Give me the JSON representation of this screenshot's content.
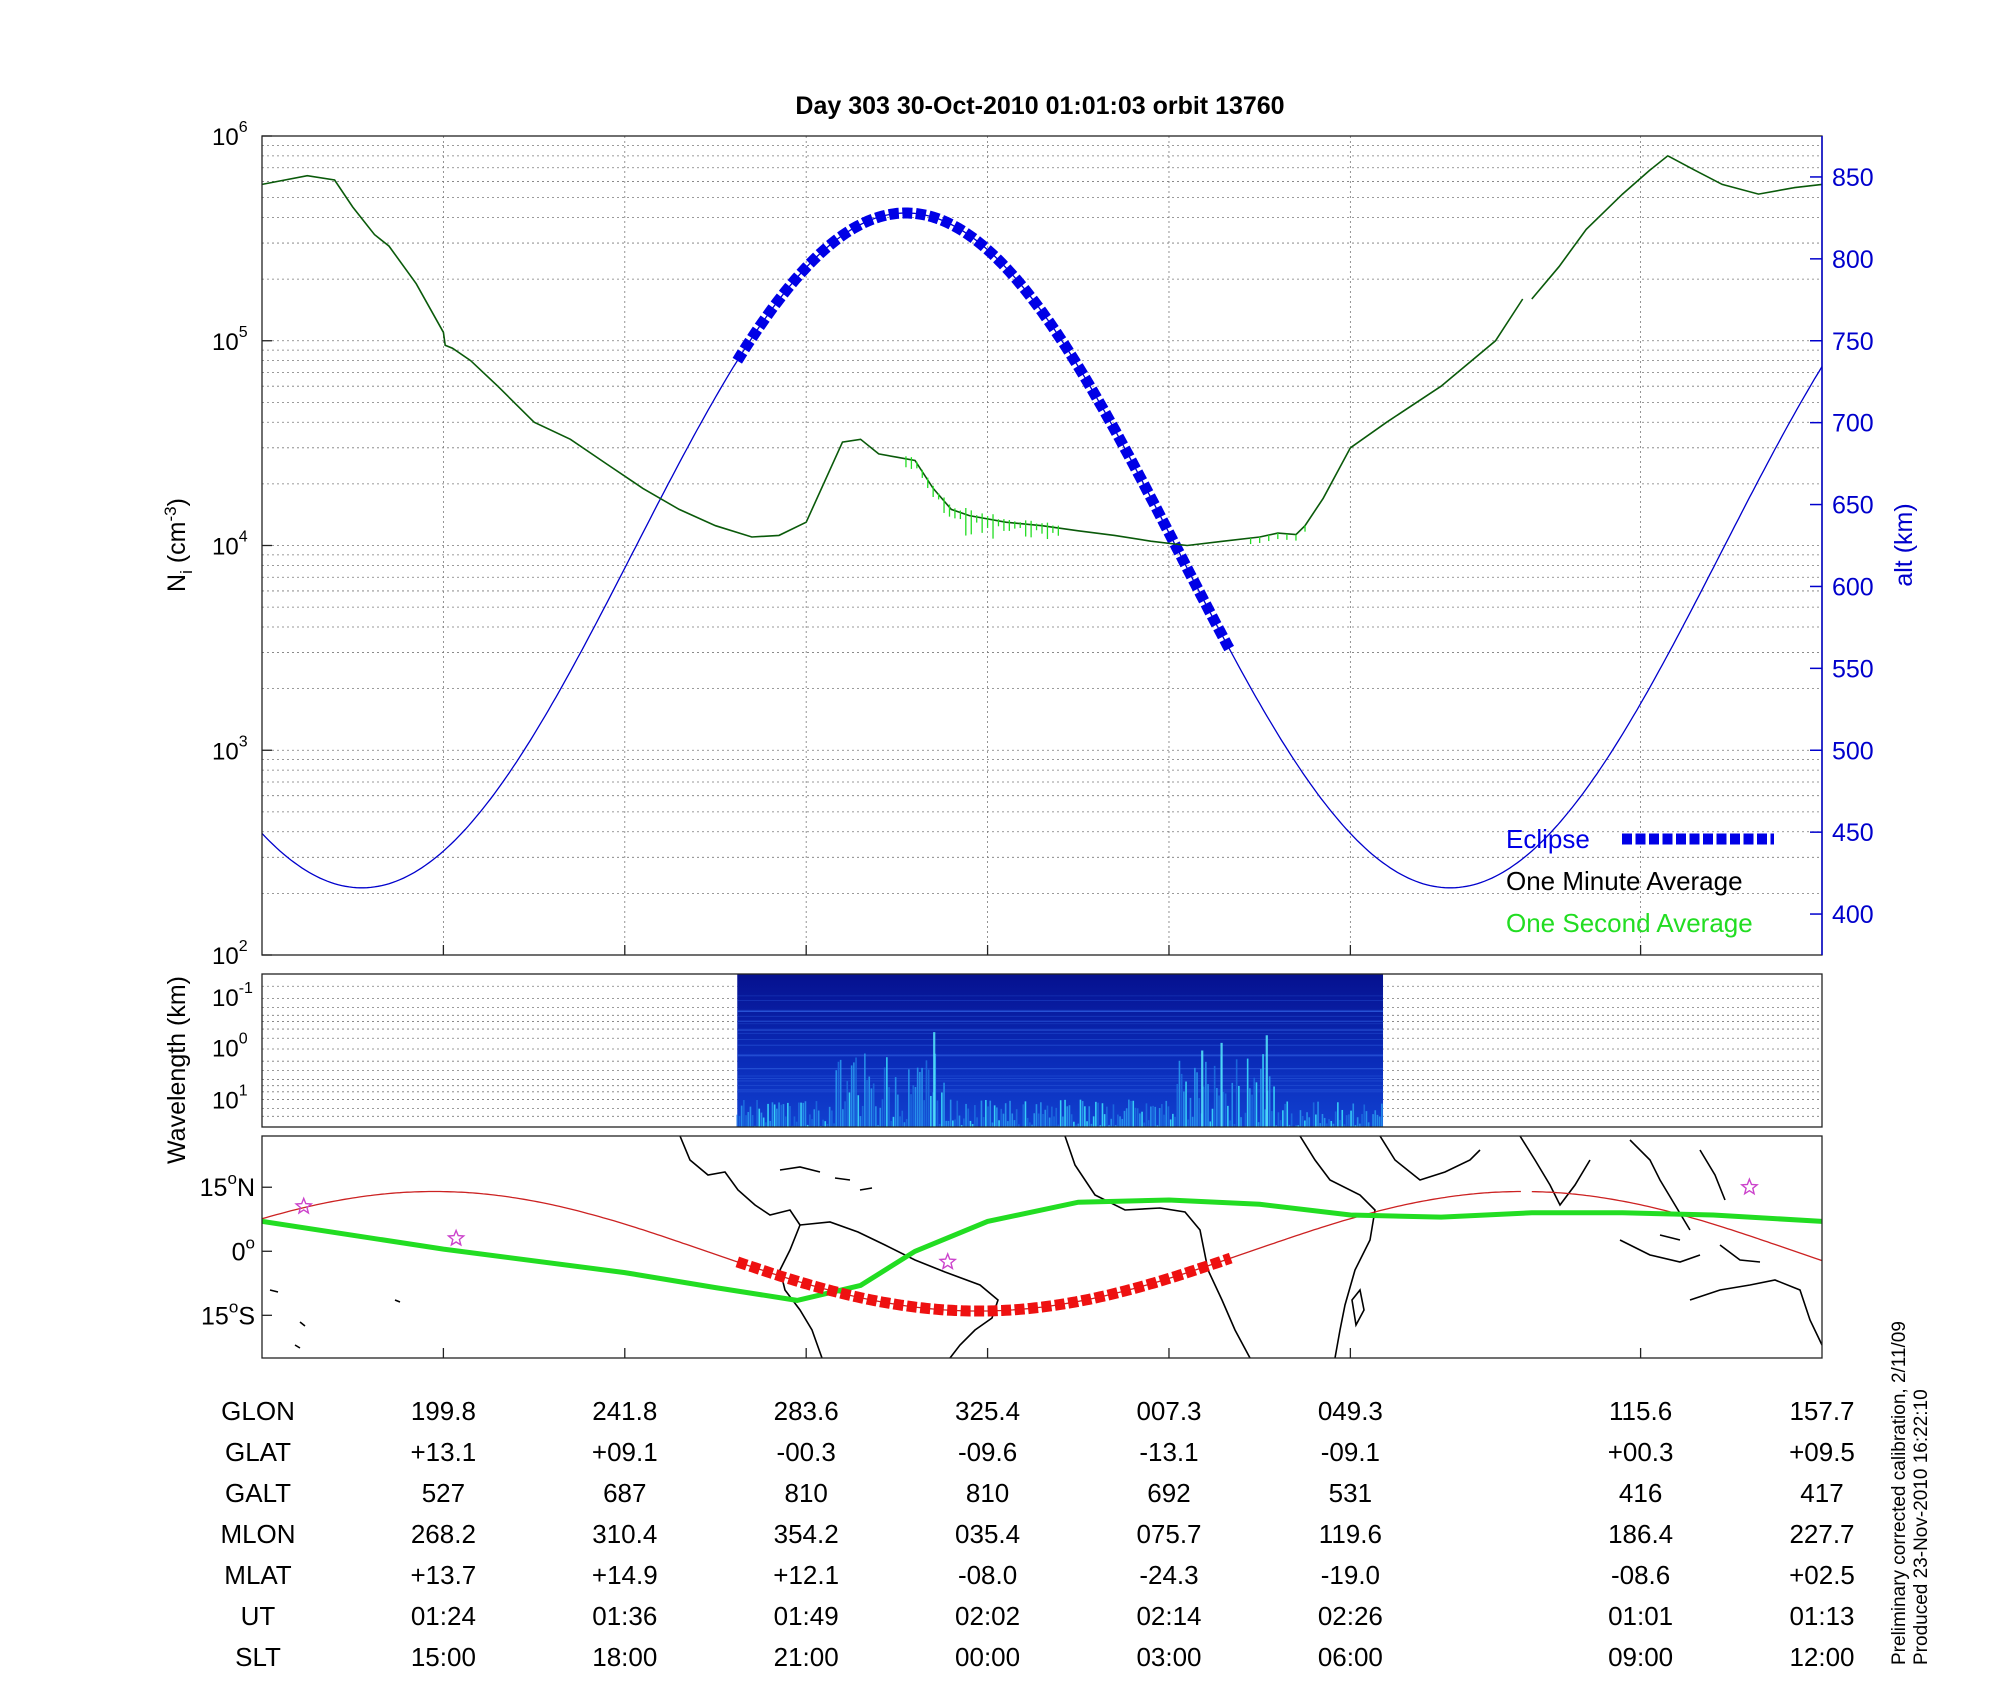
{
  "title": "Day 303  30-Oct-2010 01:01:03   orbit 13760",
  "side_note": {
    "line1": "Preliminary corrected calibration, 2/11/09",
    "line2": "Produced 23-Nov-2010 16:22:10"
  },
  "colors": {
    "altitude": "#0000cc",
    "eclipse": "#0000e6",
    "one_minute": "#0a5a0a",
    "one_second": "#22dd22",
    "orbit_track": "#cc2222",
    "eclipse_track": "#ee1111",
    "magnetic_equator": "#22dd22",
    "star": "#cc44cc"
  },
  "chart_data": [
    {
      "type": "line",
      "panel": "density",
      "xlim": [
        0,
        8.6
      ],
      "ylabel_left": {
        "main": "N",
        "sub": "i",
        "unit_pre": " (cm",
        "unit_sup": "-3",
        "unit_post": ")"
      },
      "ylabel_right": "alt (km)",
      "y_left_scale": "log",
      "y_left_lim": [
        100,
        1000000
      ],
      "y_left_ticks": [
        {
          "base": "10",
          "exp": "2",
          "value": 100
        },
        {
          "base": "10",
          "exp": "3",
          "value": 1000
        },
        {
          "base": "10",
          "exp": "4",
          "value": 10000
        },
        {
          "base": "10",
          "exp": "5",
          "value": 100000
        },
        {
          "base": "10",
          "exp": "6",
          "value": 1000000
        }
      ],
      "y_right_lim": [
        375,
        875
      ],
      "y_right_ticks": [
        "400",
        "450",
        "500",
        "550",
        "600",
        "650",
        "700",
        "750",
        "800",
        "850"
      ],
      "grid": true,
      "legend_position": "bottom-right",
      "legend": [
        {
          "label": "Eclipse",
          "color": "#0000e6"
        },
        {
          "label": "One Minute Average",
          "color": "#000000"
        },
        {
          "label": "One Second Average",
          "color": "#22dd22"
        }
      ],
      "series": [
        {
          "name": "One Minute Average",
          "axis": "left",
          "x": [
            0,
            0.25,
            0.4,
            0.5,
            0.62,
            0.7,
            0.85,
            1.0,
            1.01,
            1.05,
            1.15,
            1.3,
            1.5,
            1.7,
            1.9,
            2.1,
            2.3,
            2.5,
            2.7,
            2.85,
            3.0,
            3.2,
            3.3,
            3.4,
            3.5,
            3.6,
            3.7,
            3.8,
            3.9,
            4.1,
            4.3,
            4.5,
            4.7,
            4.9,
            5.1,
            5.3,
            5.5,
            5.6,
            5.7,
            5.75,
            5.85,
            6.0,
            6.2,
            6.5,
            6.8,
            6.95
          ],
          "y": [
            580000,
            640000,
            610000,
            450000,
            330000,
            290000,
            190000,
            110000,
            95000,
            92000,
            80000,
            60000,
            40000,
            33000,
            25000,
            19000,
            15000,
            12500,
            11000,
            11200,
            13000,
            32000,
            33000,
            28000,
            27000,
            26000,
            19000,
            15000,
            14000,
            13000,
            12500,
            11800,
            11200,
            10500,
            10000,
            10500,
            11000,
            11500,
            11300,
            12500,
            17000,
            30000,
            40000,
            60000,
            100000,
            160000
          ]
        },
        {
          "name": "One Minute Average (segment 2)",
          "axis": "left",
          "x": [
            7.0,
            7.15,
            7.3,
            7.5,
            7.65,
            7.75,
            7.9,
            8.05,
            8.25,
            8.45,
            8.6
          ],
          "y": [
            160000,
            230000,
            350000,
            520000,
            680000,
            800000,
            680000,
            580000,
            520000,
            560000,
            580000
          ]
        },
        {
          "name": "Altitude",
          "axis": "right",
          "model": "sine",
          "mean": 622,
          "amplitude": 206,
          "peak_x": 3.55,
          "period": 6.0
        },
        {
          "name": "Eclipse",
          "axis": "right",
          "model": "sine",
          "mean": 622,
          "amplitude": 206,
          "peak_x": 3.55,
          "period": 6.0,
          "x_range": [
            2.62,
            5.35
          ]
        }
      ]
    },
    {
      "type": "heatmap",
      "panel": "spectrogram",
      "ylabel": "Wavelength (km)",
      "y_ticks": [
        {
          "base": "10",
          "exp": "-1"
        },
        {
          "base": "10",
          "exp": "0"
        },
        {
          "base": "10",
          "exp": "1"
        }
      ],
      "x_range": [
        2.62,
        6.18
      ],
      "colormap": "blue-cyan"
    },
    {
      "type": "line",
      "panel": "map",
      "y_ticks": [
        {
          "value": 15,
          "label": "15",
          "hemi": "N"
        },
        {
          "value": 0,
          "label": "0",
          "hemi": ""
        },
        {
          "value": -15,
          "label": "15",
          "hemi": "S"
        }
      ],
      "ylim": [
        -25,
        27
      ],
      "series": [
        {
          "name": "Orbit track",
          "model": "sine",
          "amplitude": 14,
          "peak_x": 0.95,
          "period": 6.0,
          "x_range": [
            0,
            6.95
          ]
        },
        {
          "name": "Orbit track (segment 2)",
          "model": "sine",
          "amplitude": 14,
          "peak_x": 0.95,
          "period": 6.0,
          "x_range": [
            7.0,
            8.6
          ]
        },
        {
          "name": "Eclipse track",
          "model": "sine",
          "amplitude": 14,
          "peak_x": 0.95,
          "period": 6.0,
          "x_range": [
            2.62,
            5.35
          ]
        },
        {
          "name": "Magnetic equator",
          "x": [
            0,
            1,
            2,
            2.5,
            2.95,
            3.3,
            3.6,
            4.0,
            4.5,
            5.0,
            5.5,
            6.0,
            6.5,
            7.0,
            7.5,
            8.0,
            8.6
          ],
          "y": [
            7,
            0.5,
            -5,
            -8.5,
            -11.5,
            -8,
            0,
            7,
            11.5,
            12,
            11,
            8.5,
            8,
            9,
            9,
            8.5,
            7
          ]
        }
      ],
      "markers": [
        {
          "x": 0.23,
          "y": 10.5
        },
        {
          "x": 1.07,
          "y": 3
        },
        {
          "x": 3.78,
          "y": -2.5
        },
        {
          "x": 8.2,
          "y": 15
        }
      ]
    }
  ],
  "table": {
    "row_labels": [
      "GLON",
      "GLAT",
      "GALT",
      "MLON",
      "MLAT",
      "UT",
      "SLT"
    ],
    "columns": [
      {
        "x": 1,
        "values": [
          "199.8",
          "+13.1",
          "527",
          "268.2",
          "+13.7",
          "01:24",
          "15:00"
        ]
      },
      {
        "x": 2,
        "values": [
          "241.8",
          "+09.1",
          "687",
          "310.4",
          "+14.9",
          "01:36",
          "18:00"
        ]
      },
      {
        "x": 3,
        "values": [
          "283.6",
          "-00.3",
          "810",
          "354.2",
          "+12.1",
          "01:49",
          "21:00"
        ]
      },
      {
        "x": 4,
        "values": [
          "325.4",
          "-09.6",
          "810",
          "035.4",
          "-08.0",
          "02:02",
          "00:00"
        ]
      },
      {
        "x": 5,
        "values": [
          "007.3",
          "-13.1",
          "692",
          "075.7",
          "-24.3",
          "02:14",
          "03:00"
        ]
      },
      {
        "x": 6,
        "values": [
          "049.3",
          "-09.1",
          "531",
          "119.6",
          "-19.0",
          "02:26",
          "06:00"
        ]
      },
      {
        "x": 7.6,
        "values": [
          "115.6",
          "+00.3",
          "416",
          "186.4",
          "-08.6",
          "01:01",
          "09:00"
        ]
      },
      {
        "x": 8.6,
        "values": [
          "157.7",
          "+09.5",
          "417",
          "227.7",
          "+02.5",
          "01:13",
          "12:00"
        ]
      }
    ]
  }
}
